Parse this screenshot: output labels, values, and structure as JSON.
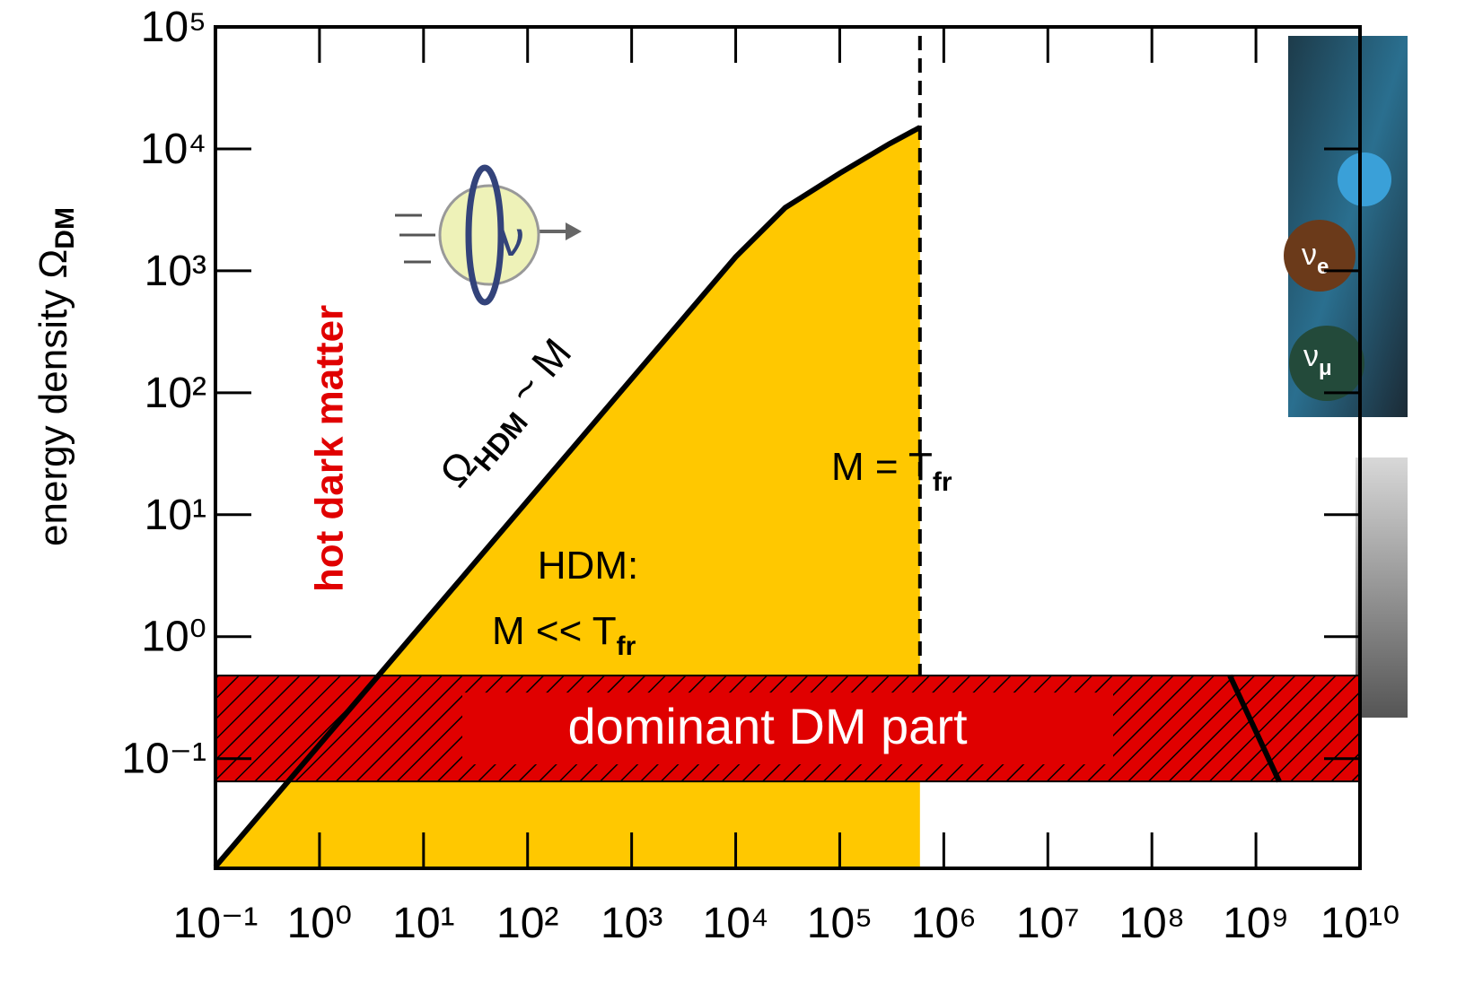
{
  "chart_data": {
    "type": "area",
    "x_scale": "log",
    "y_scale": "log",
    "ylabel": "energy density Ω",
    "ylabel_sub": "DM",
    "x": [
      0.1,
      1,
      10,
      100,
      1000,
      10000,
      30000,
      100000,
      300000,
      590000
    ],
    "values": [
      0.013,
      0.13,
      1.3,
      13,
      130,
      1300,
      3300,
      6300,
      11000,
      15000
    ],
    "color": "#ffc800",
    "line_color": "#000000",
    "xlim": [
      0.1,
      10000000000
    ],
    "ylim": [
      0.0126,
      100000
    ],
    "xticks": [
      {
        "value": 0.1,
        "label": "10⁻¹"
      },
      {
        "value": 1,
        "label": "10⁰"
      },
      {
        "value": 10,
        "label": "10¹"
      },
      {
        "value": 100,
        "label": "10²"
      },
      {
        "value": 1000,
        "label": "10³"
      },
      {
        "value": 10000,
        "label": "10⁴"
      },
      {
        "value": 100000,
        "label": "10⁵"
      },
      {
        "value": 1000000,
        "label": "10⁶"
      },
      {
        "value": 10000000,
        "label": "10⁷"
      },
      {
        "value": 100000000,
        "label": "10⁸"
      },
      {
        "value": 1000000000,
        "label": "10⁹"
      },
      {
        "value": 10000000000,
        "label": "10¹⁰"
      }
    ],
    "yticks": [
      {
        "value": 0.1,
        "label": "10⁻¹"
      },
      {
        "value": 1,
        "label": "10⁰"
      },
      {
        "value": 10,
        "label": "10¹"
      },
      {
        "value": 100,
        "label": "10²"
      },
      {
        "value": 1000,
        "label": "10³"
      },
      {
        "value": 10000,
        "label": "10⁴"
      },
      {
        "value": 100000,
        "label": "10⁵"
      }
    ],
    "band": {
      "range": [
        0.065,
        0.48
      ],
      "label": "dominant DM part",
      "color": "#e00000"
    },
    "freeze_out_x": 590000,
    "annotations": {
      "curve": {
        "text": "Ω",
        "sub": "HDM",
        "tail": " ~ M"
      },
      "hdm_title": "HDM:",
      "hdm_cond": {
        "text": "M << T",
        "sub": "fr"
      },
      "freeze": {
        "text": "M = T",
        "sub": "fr"
      },
      "side": "hot dark matter",
      "icon": "ν"
    }
  },
  "images": {
    "labels": [
      {
        "text": "ν",
        "sub": "e"
      },
      {
        "text": "ν",
        "sub": "μ"
      }
    ]
  }
}
